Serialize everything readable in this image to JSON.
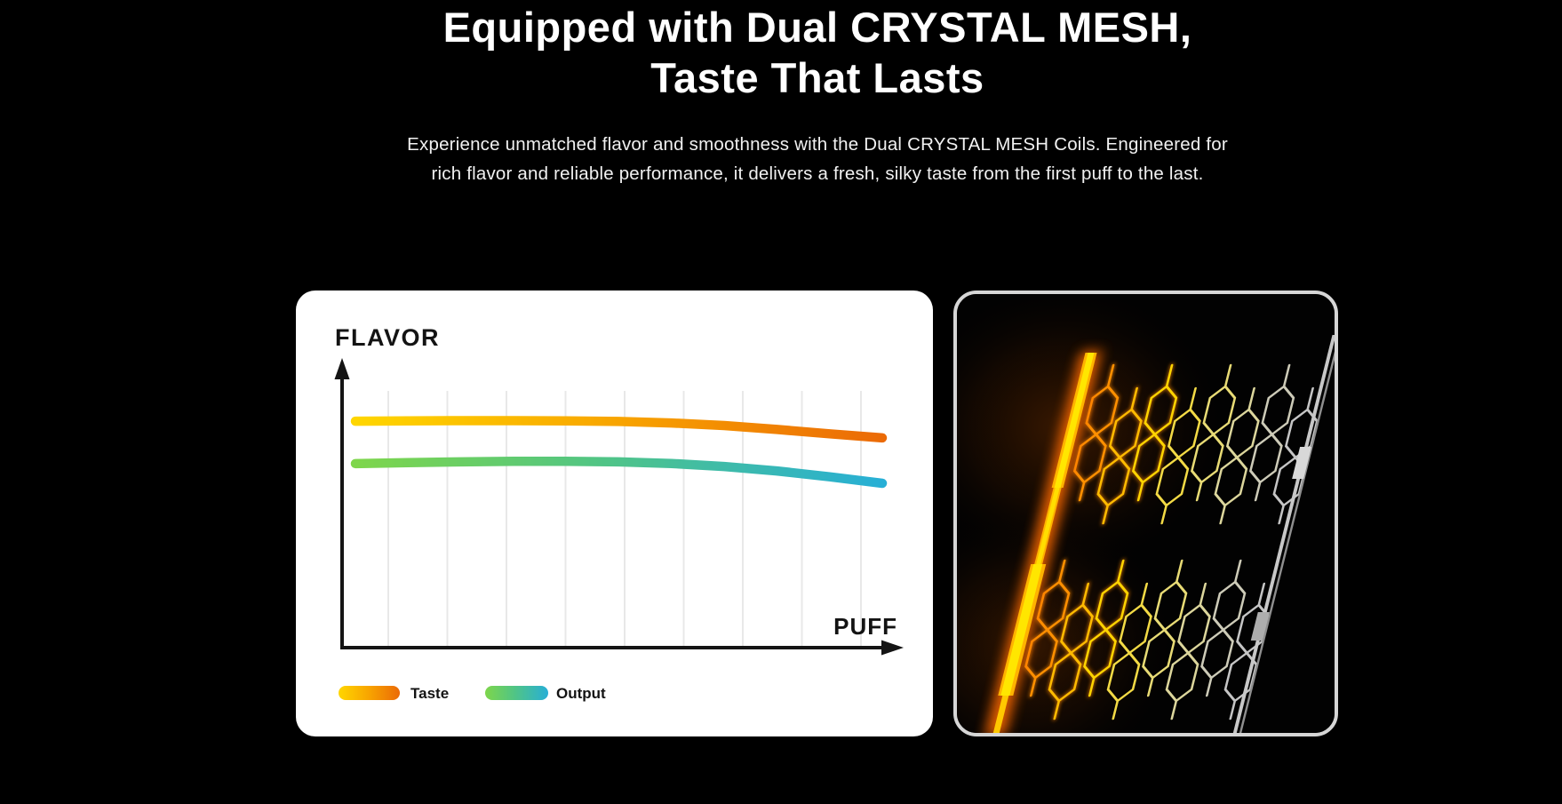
{
  "page": {
    "background": "#000000",
    "text_color": "#FFFFFF"
  },
  "hero": {
    "title_line1": "Equipped with Dual CRYSTAL MESH,",
    "title_line2": "Taste That Lasts",
    "subtitle_line1": "Experience unmatched flavor and smoothness with the Dual CRYSTAL MESH Coils. Engineered for",
    "subtitle_line2": "rich flavor and reliable performance, it delivers a fresh, silky taste from the first puff to the last."
  },
  "chart_data": {
    "type": "line",
    "title": "",
    "xlabel": "PUFF",
    "ylabel": "FLAVOR",
    "x": [
      0,
      1,
      2,
      3,
      4,
      5,
      6,
      7,
      8,
      9,
      10
    ],
    "x_tick_labels": [],
    "y_tick_labels": [],
    "ylim": [
      0,
      1
    ],
    "gridlines": {
      "vertical_count": 9,
      "horizontal": false,
      "color": "#E8E8E8"
    },
    "axis_color": "#141414",
    "legend_position": "bottom-left",
    "series": [
      {
        "name": "Taste",
        "values": [
          0.879,
          0.88,
          0.881,
          0.881,
          0.88,
          0.878,
          0.872,
          0.862,
          0.847,
          0.83,
          0.814
        ],
        "gradient": [
          "#FFD600",
          "#F8A400",
          "#EB6A06"
        ]
      },
      {
        "name": "Output",
        "values": [
          0.714,
          0.718,
          0.721,
          0.723,
          0.723,
          0.721,
          0.715,
          0.703,
          0.686,
          0.663,
          0.638
        ],
        "gradient": [
          "#7ED64B",
          "#52C583",
          "#27AFD6"
        ]
      }
    ]
  },
  "coil_panel": {
    "border_color": "#D6D6D6",
    "background": "#000000",
    "glow_bar_core": "#FFE600",
    "glow_bar_mid": "#FFB300",
    "glow_outer": "#FF6A00",
    "rail_color": "#C8C8C8",
    "mesh_colors": [
      "#FF9000",
      "#FFBB00",
      "#FFD400",
      "#F3DA45",
      "#E8DB75",
      "#DCD69C",
      "#CDCBB8",
      "#C5C5C5"
    ]
  }
}
